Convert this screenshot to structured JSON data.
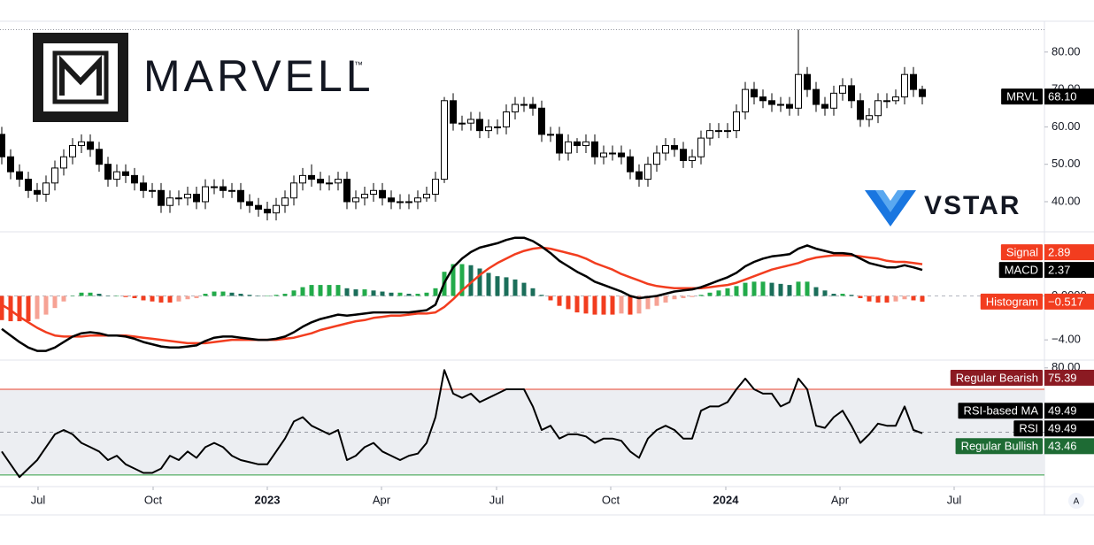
{
  "chart_data": [
    {
      "type": "candlestick",
      "name": "MRVL",
      "last_label": "68.10",
      "tag_color": "#000000",
      "logos": [
        "MARVELL",
        "VSTAR"
      ],
      "up_fill": "#ffffff",
      "down_fill": "#000000",
      "edge_color": "#000000",
      "xlim": [
        -0.2,
        117.8
      ],
      "ylim": [
        32.9,
        88.0
      ],
      "yticks": [
        {
          "value": 80,
          "label": "80.00"
        },
        {
          "value": 70,
          "label": "70.00"
        },
        {
          "value": 60,
          "label": "60.00"
        },
        {
          "value": 50,
          "label": "50.00"
        },
        {
          "value": 40,
          "label": "40.00"
        }
      ],
      "open": [
        58,
        52,
        48,
        46,
        43,
        42,
        45,
        49,
        52,
        55,
        56,
        54,
        50,
        46,
        48,
        47,
        45,
        43,
        43,
        39,
        41,
        41,
        42,
        40,
        44,
        44,
        43,
        43,
        40,
        39,
        38,
        37,
        39,
        41,
        45,
        47,
        46,
        45,
        45,
        46,
        40,
        41,
        42,
        43,
        41,
        40,
        40,
        40,
        41,
        42,
        46,
        67,
        61,
        61,
        62,
        59,
        60,
        60,
        64,
        66,
        66,
        65,
        58,
        58,
        53,
        56,
        55,
        56,
        52,
        53,
        53,
        52,
        48,
        46,
        50,
        53,
        55,
        54,
        51,
        52,
        57,
        59,
        59,
        59,
        64,
        70,
        68,
        67,
        66,
        66,
        65,
        74,
        70,
        66,
        65,
        69,
        71,
        67,
        62,
        63,
        67,
        67,
        68,
        74,
        70
      ],
      "high": [
        60,
        54,
        50,
        48,
        45,
        47,
        51,
        54,
        57,
        58,
        58,
        56,
        52,
        50,
        50,
        49,
        47,
        45,
        45,
        43,
        43,
        44,
        44,
        46,
        46,
        46,
        45,
        45,
        42,
        41,
        40,
        41,
        43,
        47,
        49,
        50,
        48,
        47,
        48,
        48,
        43,
        44,
        45,
        45,
        43,
        42,
        42,
        43,
        44,
        48,
        68,
        69,
        63,
        64,
        64,
        62,
        62,
        66,
        68,
        68,
        68,
        67,
        60,
        60,
        58,
        57,
        58,
        58,
        55,
        55,
        55,
        54,
        50,
        52,
        55,
        57,
        57,
        56,
        54,
        59,
        61,
        61,
        61,
        66,
        72,
        72,
        70,
        69,
        68,
        68,
        86,
        76,
        72,
        68,
        71,
        73,
        73,
        69,
        65,
        69,
        69,
        70,
        76,
        76,
        71
      ],
      "low": [
        50,
        46,
        44,
        41,
        40,
        40,
        43,
        47,
        50,
        53,
        52,
        48,
        44,
        44,
        45,
        43,
        41,
        41,
        37,
        37,
        39,
        39,
        38,
        38,
        42,
        41,
        41,
        38,
        37,
        36,
        35,
        35,
        37,
        39,
        43,
        44,
        43,
        43,
        43,
        38,
        38,
        39,
        40,
        39,
        38,
        38,
        38,
        38,
        40,
        40,
        45,
        59,
        59,
        59,
        57,
        57,
        58,
        58,
        62,
        64,
        63,
        56,
        56,
        51,
        51,
        53,
        53,
        50,
        50,
        51,
        50,
        46,
        44,
        44,
        48,
        51,
        52,
        49,
        49,
        50,
        55,
        57,
        57,
        57,
        62,
        66,
        65,
        64,
        64,
        63,
        63,
        68,
        64,
        63,
        63,
        67,
        65,
        60,
        60,
        61,
        65,
        66,
        66,
        68,
        66
      ],
      "close": [
        52,
        48,
        46,
        43,
        42,
        45,
        49,
        52,
        55,
        56,
        54,
        50,
        46,
        48,
        47,
        45,
        43,
        43,
        39,
        41,
        41,
        42,
        40,
        44,
        44,
        43,
        43,
        40,
        39,
        38,
        37,
        39,
        41,
        45,
        47,
        46,
        45,
        45,
        46,
        40,
        41,
        42,
        43,
        41,
        40,
        40,
        40,
        41,
        42,
        46,
        67,
        61,
        61,
        62,
        59,
        60,
        60,
        64,
        66,
        66,
        65,
        58,
        58,
        53,
        56,
        55,
        56,
        52,
        53,
        53,
        52,
        48,
        46,
        50,
        53,
        55,
        54,
        51,
        52,
        57,
        59,
        59,
        59,
        64,
        70,
        68,
        67,
        66,
        66,
        65,
        74,
        70,
        66,
        65,
        69,
        71,
        67,
        62,
        63,
        67,
        67,
        68,
        74,
        70,
        68.1
      ]
    },
    {
      "type": "macd",
      "xlim": [
        -0.2,
        117.8
      ],
      "ylim": [
        -5.68,
        5.52
      ],
      "yticks": [
        {
          "value": 0,
          "label": "0.0000"
        },
        {
          "value": -4,
          "label": "−4.00"
        }
      ],
      "series": [
        {
          "name": "Signal",
          "color": "#f23d1f",
          "values": [
            -0.8,
            -1.3,
            -1.9,
            -2.4,
            -2.9,
            -3.3,
            -3.6,
            -3.7,
            -3.7,
            -3.7,
            -3.6,
            -3.6,
            -3.6,
            -3.6,
            -3.6,
            -3.7,
            -3.8,
            -3.9,
            -4.0,
            -4.1,
            -4.2,
            -4.3,
            -4.3,
            -4.3,
            -4.2,
            -4.1,
            -4.0,
            -4.0,
            -4.0,
            -4.0,
            -4.0,
            -4.0,
            -3.9,
            -3.8,
            -3.6,
            -3.4,
            -3.1,
            -2.9,
            -2.7,
            -2.5,
            -2.3,
            -2.2,
            -2.0,
            -1.9,
            -1.8,
            -1.8,
            -1.7,
            -1.6,
            -1.6,
            -1.5,
            -1.0,
            -0.3,
            0.5,
            1.2,
            1.9,
            2.5,
            3.0,
            3.4,
            3.8,
            4.1,
            4.3,
            4.4,
            4.3,
            4.1,
            3.9,
            3.7,
            3.4,
            3.0,
            2.7,
            2.4,
            2.0,
            1.7,
            1.4,
            1.1,
            0.9,
            0.8,
            0.7,
            0.7,
            0.7,
            0.7,
            0.8,
            0.9,
            1.0,
            1.2,
            1.5,
            1.8,
            2.1,
            2.4,
            2.6,
            2.8,
            3.0,
            3.3,
            3.5,
            3.6,
            3.7,
            3.7,
            3.7,
            3.6,
            3.5,
            3.4,
            3.2,
            3.1,
            3.1,
            3.0,
            2.89
          ]
        },
        {
          "name": "MACD",
          "color": "#000000",
          "values": [
            -3.0,
            -3.6,
            -4.2,
            -4.7,
            -5.0,
            -5.0,
            -4.7,
            -4.2,
            -3.7,
            -3.4,
            -3.3,
            -3.4,
            -3.6,
            -3.6,
            -3.7,
            -3.9,
            -4.2,
            -4.4,
            -4.6,
            -4.7,
            -4.7,
            -4.6,
            -4.5,
            -4.1,
            -3.8,
            -3.7,
            -3.7,
            -3.8,
            -3.9,
            -4.0,
            -4.0,
            -3.9,
            -3.7,
            -3.3,
            -2.8,
            -2.4,
            -2.1,
            -1.9,
            -1.7,
            -1.8,
            -1.7,
            -1.6,
            -1.5,
            -1.5,
            -1.5,
            -1.5,
            -1.5,
            -1.4,
            -1.3,
            -0.8,
            1.2,
            2.6,
            3.4,
            4.0,
            4.4,
            4.6,
            4.8,
            5.1,
            5.3,
            5.3,
            5.0,
            4.5,
            3.9,
            3.2,
            2.7,
            2.2,
            1.8,
            1.3,
            1.0,
            0.7,
            0.4,
            0.0,
            -0.2,
            -0.1,
            0.0,
            0.2,
            0.4,
            0.5,
            0.6,
            0.8,
            1.1,
            1.4,
            1.7,
            2.1,
            2.7,
            3.1,
            3.4,
            3.6,
            3.7,
            3.8,
            4.3,
            4.6,
            4.3,
            4.1,
            3.9,
            3.9,
            3.8,
            3.4,
            3.0,
            2.8,
            2.6,
            2.6,
            2.8,
            2.6,
            2.37
          ]
        },
        {
          "name": "Histogram",
          "color": "#f23d1f",
          "last_label": "−0.517",
          "colors": {
            "up_rising": "#22ab4a",
            "up_falling": "#1b6e5a",
            "down_falling": "#f23d1f",
            "down_rising": "#f6a294"
          },
          "values": [
            -2.2,
            -2.3,
            -2.3,
            -2.3,
            -2.1,
            -1.7,
            -1.1,
            -0.5,
            0.0,
            0.3,
            0.3,
            0.2,
            0.0,
            0.0,
            -0.1,
            -0.2,
            -0.4,
            -0.5,
            -0.6,
            -0.6,
            -0.5,
            -0.3,
            -0.2,
            0.2,
            0.4,
            0.4,
            0.3,
            0.2,
            0.1,
            0.0,
            0.0,
            0.1,
            0.2,
            0.5,
            0.8,
            1.0,
            1.0,
            1.0,
            1.0,
            0.7,
            0.6,
            0.6,
            0.5,
            0.4,
            0.3,
            0.3,
            0.2,
            0.2,
            0.3,
            0.7,
            2.2,
            2.9,
            2.9,
            2.8,
            2.5,
            2.1,
            1.8,
            1.7,
            1.5,
            1.2,
            0.7,
            0.1,
            -0.4,
            -0.9,
            -1.2,
            -1.5,
            -1.6,
            -1.7,
            -1.7,
            -1.7,
            -1.6,
            -1.7,
            -1.6,
            -1.2,
            -0.9,
            -0.6,
            -0.3,
            -0.2,
            -0.1,
            0.1,
            0.3,
            0.5,
            0.7,
            0.9,
            1.2,
            1.3,
            1.3,
            1.2,
            1.1,
            1.0,
            1.3,
            1.3,
            0.8,
            0.5,
            0.2,
            0.2,
            0.1,
            -0.2,
            -0.5,
            -0.6,
            -0.6,
            -0.5,
            -0.3,
            -0.4,
            -0.517
          ]
        }
      ]
    },
    {
      "type": "line",
      "xlim": [
        -0.2,
        117.8
      ],
      "ylim": [
        24.6,
        82.8
      ],
      "yticks": [
        {
          "value": 80,
          "label": "80.00"
        }
      ],
      "bands": {
        "upper": 70,
        "middle": 50,
        "lower": 30,
        "upper_color": "#e8412c",
        "lower_color": "#2e9e41",
        "fill": "#eceef2"
      },
      "xticks": [
        {
          "value": 4.1,
          "label": "Jul"
        },
        {
          "value": 17.1,
          "label": "Oct"
        },
        {
          "value": 30,
          "label": "2023",
          "bold": true
        },
        {
          "value": 42.9,
          "label": "Apr"
        },
        {
          "value": 55.9,
          "label": "Jul"
        },
        {
          "value": 68.8,
          "label": "Oct"
        },
        {
          "value": 81.8,
          "label": "2024",
          "bold": true
        },
        {
          "value": 94.7,
          "label": "Apr"
        },
        {
          "value": 107.6,
          "label": "Jul"
        }
      ],
      "markers": [
        {
          "name": "Regular Bearish",
          "value": 75.39,
          "color": "#8b1a22"
        },
        {
          "name": "RSI-based MA",
          "value": 49.49,
          "color": "#000000"
        },
        {
          "name": "Regular Bullish",
          "value": 43.46,
          "color": "#1e6b34"
        }
      ],
      "series": [
        {
          "name": "RSI",
          "color": "#000000",
          "values": [
            41,
            35,
            29,
            33,
            37,
            43,
            49,
            51,
            49,
            45,
            43,
            41,
            37,
            39,
            35,
            33,
            31,
            31,
            33,
            39,
            37,
            41,
            38,
            43,
            45,
            43,
            39,
            37,
            36,
            35,
            35,
            41,
            47,
            55,
            57,
            53,
            51,
            49,
            51,
            37,
            39,
            43,
            45,
            41,
            39,
            37,
            39,
            40,
            45,
            57,
            79,
            68,
            66,
            68,
            64,
            66,
            68,
            70,
            70,
            70,
            62,
            51,
            53,
            47,
            49,
            49,
            48,
            45,
            47,
            47,
            46,
            41,
            38,
            47,
            51,
            53,
            51,
            47,
            47,
            60,
            62,
            62,
            64,
            70,
            75,
            70,
            68,
            68,
            62,
            64,
            75,
            70,
            53,
            52,
            57,
            60,
            53,
            45,
            49,
            54,
            53,
            53,
            62,
            51,
            49.49
          ]
        }
      ]
    }
  ],
  "ui": {
    "auto_button": "A"
  }
}
